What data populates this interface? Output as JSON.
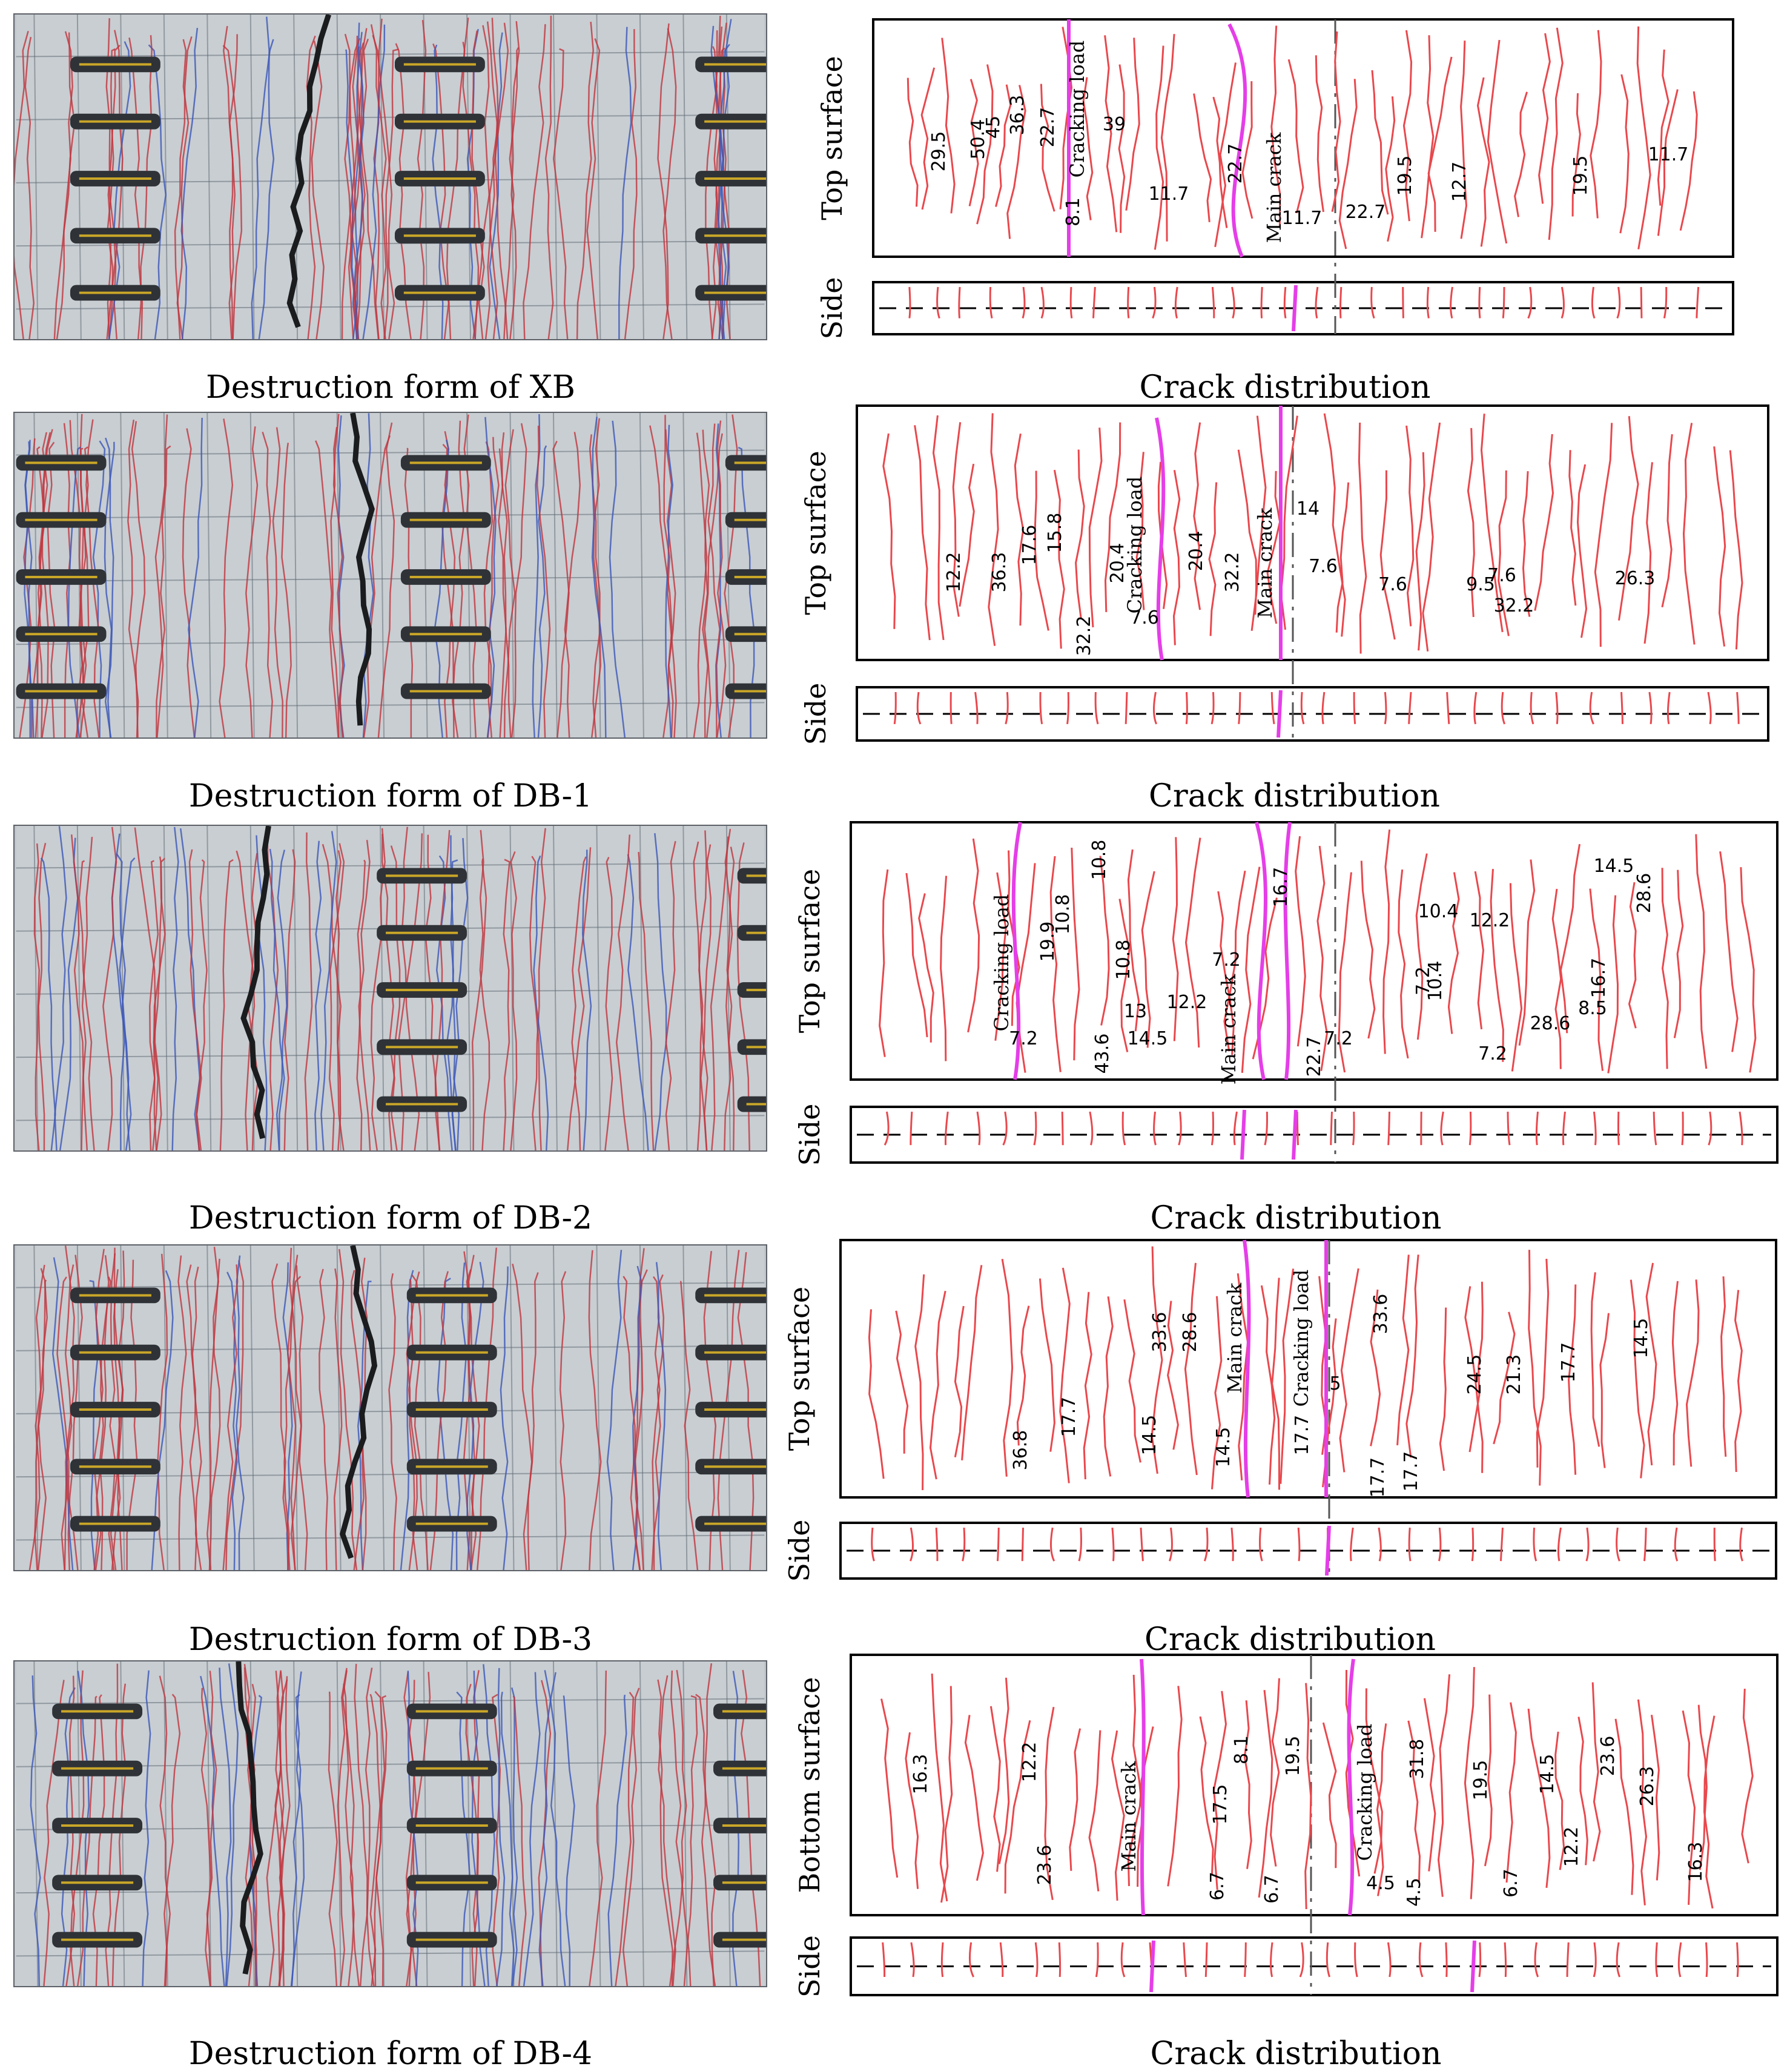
{
  "specimens": [
    {
      "id": "XB",
      "photo_caption": "Destruction form of XB",
      "diagram_caption": "Crack distribution",
      "face_label": "Top surface",
      "side_label": "Side",
      "main_crack_label": "Main crack",
      "cracking_load_label": "Cracking load",
      "load_values": [
        "29.5",
        "50.4",
        "45",
        "36.3",
        "22.7",
        "8.1",
        "39",
        "11.7",
        "22.7",
        "11.7",
        "22.7",
        "19.5",
        "12.7",
        "19.5",
        "11.7"
      ]
    },
    {
      "id": "DB-1",
      "photo_caption": "Destruction form of DB-1",
      "diagram_caption": "Crack distribution",
      "face_label": "Top surface",
      "side_label": "Side",
      "main_crack_label": "Main crack",
      "cracking_load_label": "Cracking load",
      "load_values": [
        "12.2",
        "36.3",
        "17.6",
        "15.8",
        "32.2",
        "20.4",
        "7.6",
        "20.4",
        "32.2",
        "14",
        "7.6",
        "7.6",
        "9.5",
        "7.6",
        "32.2",
        "26.3"
      ]
    },
    {
      "id": "DB-2",
      "photo_caption": "Destruction form of DB-2",
      "diagram_caption": "Crack distribution",
      "face_label": "Top surface",
      "side_label": "Side",
      "main_crack_label": "Main crack",
      "cracking_load_label": "Cracking load",
      "load_values": [
        "7.2",
        "19.9",
        "10.8",
        "10.8",
        "10.8",
        "43.6",
        "13",
        "14.5",
        "12.2",
        "7.2",
        "16.7",
        "22.7",
        "7.2",
        "7.2",
        "10.4",
        "12.2",
        "10.4",
        "7.2",
        "28.6",
        "8.5",
        "16.7",
        "14.5",
        "28.6"
      ]
    },
    {
      "id": "DB-3",
      "photo_caption": "Destruction form of DB-3",
      "diagram_caption": "Crack distribution",
      "face_label": "Top surface",
      "side_label": "Side",
      "main_crack_label": "Main crack",
      "cracking_load_label": "Cracking load",
      "load_values": [
        "36.8",
        "17.7",
        "33.6",
        "14.5",
        "28.6",
        "14.5",
        "17.7",
        "5",
        "17.7",
        "33.6",
        "17.7",
        "24.5",
        "21.3",
        "17.7",
        "14.5"
      ]
    },
    {
      "id": "DB-4",
      "photo_caption": "Destruction form of DB-4",
      "diagram_caption": "Crack distribution",
      "face_label": "Bottom surface",
      "side_label": "Side",
      "main_crack_label": "Main crack",
      "cracking_load_label": "Cracking load",
      "load_values": [
        "16.3",
        "12.2",
        "23.6",
        "6.7",
        "17.5",
        "8.1",
        "6.7",
        "19.5",
        "4.5",
        "31.8",
        "4.5",
        "19.5",
        "6.7",
        "14.5",
        "12.2",
        "23.6",
        "26.3",
        "16.3"
      ]
    }
  ],
  "colors": {
    "crack": "#e8484d",
    "main_crack": "#e53ee8",
    "frame": "#000000",
    "slab_photo": "#c8ced2",
    "strain_gauge": "#2f3337"
  }
}
